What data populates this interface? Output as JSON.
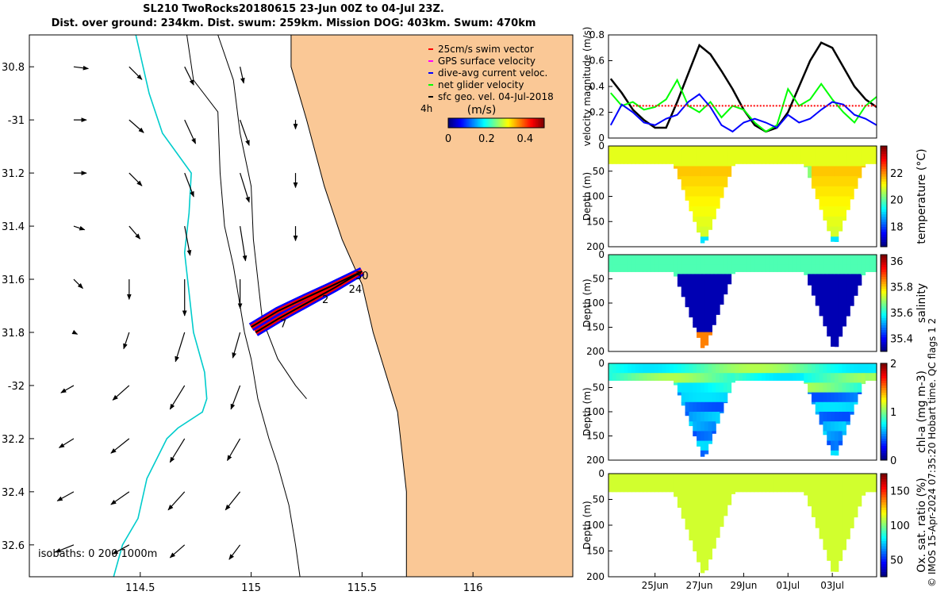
{
  "header": {
    "title_line1": "SL210 TwoRocks20180615 23-Jun 00Z to 04-Jul 23Z.",
    "title_line2": "Dist. over ground: 234km. Dist. swum: 259km. Mission DOG: 403km. Swum: 470km"
  },
  "credit": "© IMOS 15-Apr-2024 07:35:20 Hobart time. QC flags 1  2",
  "colors": {
    "land": "#fac896",
    "isobath_200": "#00cccc",
    "swim_vector": "#ff0000",
    "gps_velocity": "#ff00ff",
    "dive_avg_current": "#0000ff",
    "net_glider_velocity": "#00ff00",
    "sfc_geo_velocity": "#000000"
  },
  "chart_data": [
    {
      "type": "map",
      "id": "map",
      "xlim": [
        114.0,
        116.45
      ],
      "ylim": [
        -32.72,
        -30.68
      ],
      "x_ticks": [
        114.5,
        115,
        115.5,
        116
      ],
      "x_tick_labels": [
        "114.5",
        "115",
        "115.5",
        "116"
      ],
      "y_ticks": [
        -30.8,
        -31,
        -31.2,
        -31.4,
        -31.6,
        -31.8,
        -32,
        -32.2,
        -32.4,
        -32.6
      ],
      "y_tick_labels": [
        "30.8",
        "-31",
        "31.2",
        "31.4",
        "31.6",
        "31.8",
        "-32",
        "32.2",
        "32.4",
        "32.6"
      ],
      "legend": [
        {
          "label": "25cm/s swim vector",
          "color": "#ff0000"
        },
        {
          "label": "GPS surface velocity",
          "color": "#ff00ff"
        },
        {
          "label": "dive-avg current veloc.",
          "color": "#0000ff"
        },
        {
          "label": "net glider velocity",
          "color": "#00ff00"
        },
        {
          "label": "sfc geo. vel. 04-Jul-2018",
          "color": "#000000"
        }
      ],
      "legend_note": "4h",
      "colorbar": {
        "label": "(m/s)",
        "ticks": [
          0,
          0.2,
          0.4
        ],
        "tick_labels": [
          "0",
          "0.2",
          "0.4"
        ],
        "range": [
          0,
          0.5
        ]
      },
      "isobaths_label": "isobaths: 0   200  1000m",
      "track_labels": [
        "30",
        "24",
        "7",
        "2"
      ],
      "coastline": [
        [
          115.18,
          -30.68
        ],
        [
          115.18,
          -30.8
        ],
        [
          115.25,
          -31.0
        ],
        [
          115.33,
          -31.25
        ],
        [
          115.41,
          -31.45
        ],
        [
          115.5,
          -31.62
        ],
        [
          115.55,
          -31.8
        ],
        [
          115.66,
          -32.1
        ],
        [
          115.7,
          -32.4
        ],
        [
          115.7,
          -32.72
        ]
      ],
      "isobath_0": [
        [
          114.71,
          -30.68
        ],
        [
          114.74,
          -30.85
        ],
        [
          114.85,
          -30.97
        ],
        [
          114.86,
          -31.2
        ],
        [
          114.88,
          -31.4
        ],
        [
          114.92,
          -31.55
        ],
        [
          114.95,
          -31.7
        ],
        [
          114.97,
          -31.8
        ],
        [
          115.0,
          -31.9
        ],
        [
          115.03,
          -32.05
        ],
        [
          115.08,
          -32.2
        ],
        [
          115.12,
          -32.3
        ],
        [
          115.17,
          -32.45
        ],
        [
          115.2,
          -32.6
        ],
        [
          115.22,
          -32.72
        ]
      ],
      "isobath_200": [
        [
          114.48,
          -30.68
        ],
        [
          114.54,
          -30.9
        ],
        [
          114.6,
          -31.05
        ],
        [
          114.73,
          -31.2
        ],
        [
          114.72,
          -31.35
        ],
        [
          114.7,
          -31.5
        ],
        [
          114.72,
          -31.65
        ],
        [
          114.74,
          -31.8
        ],
        [
          114.79,
          -31.95
        ],
        [
          114.8,
          -32.05
        ],
        [
          114.78,
          -32.1
        ],
        [
          114.67,
          -32.16
        ],
        [
          114.62,
          -32.2
        ],
        [
          114.53,
          -32.35
        ],
        [
          114.49,
          -32.5
        ],
        [
          114.42,
          -32.6
        ],
        [
          114.38,
          -32.72
        ]
      ],
      "isobath_1000": [
        [
          114.85,
          -30.68
        ],
        [
          114.92,
          -30.85
        ],
        [
          114.95,
          -31.05
        ],
        [
          115.0,
          -31.25
        ],
        [
          115.01,
          -31.45
        ],
        [
          115.03,
          -31.6
        ],
        [
          115.05,
          -31.75
        ],
        [
          115.12,
          -31.9
        ],
        [
          115.2,
          -32.0
        ],
        [
          115.25,
          -32.05
        ]
      ],
      "track_path": [
        [
          115.0,
          -31.78
        ],
        [
          115.12,
          -31.72
        ],
        [
          115.22,
          -31.68
        ],
        [
          115.35,
          -31.63
        ],
        [
          115.5,
          -31.57
        ],
        [
          115.38,
          -31.63
        ],
        [
          115.25,
          -31.69
        ],
        [
          115.12,
          -31.75
        ],
        [
          115.02,
          -31.8
        ]
      ],
      "vectors": [
        {
          "lon": 114.2,
          "lat": -30.8,
          "u": 0.08,
          "v": -0.01
        },
        {
          "lon": 114.45,
          "lat": -30.8,
          "u": 0.07,
          "v": -0.07
        },
        {
          "lon": 114.7,
          "lat": -30.8,
          "u": 0.05,
          "v": -0.1
        },
        {
          "lon": 114.95,
          "lat": -30.8,
          "u": 0.02,
          "v": -0.09
        },
        {
          "lon": 114.2,
          "lat": -31.0,
          "u": 0.07,
          "v": 0.0
        },
        {
          "lon": 114.45,
          "lat": -31.0,
          "u": 0.08,
          "v": -0.07
        },
        {
          "lon": 114.7,
          "lat": -31.0,
          "u": 0.06,
          "v": -0.13
        },
        {
          "lon": 114.95,
          "lat": -31.0,
          "u": 0.05,
          "v": -0.14
        },
        {
          "lon": 115.2,
          "lat": -31.0,
          "u": 0.0,
          "v": -0.05
        },
        {
          "lon": 114.2,
          "lat": -31.2,
          "u": 0.07,
          "v": 0.0
        },
        {
          "lon": 114.45,
          "lat": -31.2,
          "u": 0.07,
          "v": -0.07
        },
        {
          "lon": 114.7,
          "lat": -31.2,
          "u": 0.05,
          "v": -0.13
        },
        {
          "lon": 114.95,
          "lat": -31.2,
          "u": 0.05,
          "v": -0.16
        },
        {
          "lon": 115.2,
          "lat": -31.2,
          "u": 0.0,
          "v": -0.08
        },
        {
          "lon": 114.2,
          "lat": -31.4,
          "u": 0.06,
          "v": -0.02
        },
        {
          "lon": 114.45,
          "lat": -31.4,
          "u": 0.06,
          "v": -0.07
        },
        {
          "lon": 114.7,
          "lat": -31.4,
          "u": 0.03,
          "v": -0.16
        },
        {
          "lon": 114.95,
          "lat": -31.4,
          "u": 0.03,
          "v": -0.19
        },
        {
          "lon": 115.2,
          "lat": -31.4,
          "u": 0.0,
          "v": -0.08
        },
        {
          "lon": 114.2,
          "lat": -31.6,
          "u": 0.05,
          "v": -0.05
        },
        {
          "lon": 114.45,
          "lat": -31.6,
          "u": 0.0,
          "v": -0.11
        },
        {
          "lon": 114.7,
          "lat": -31.6,
          "u": 0.0,
          "v": -0.2
        },
        {
          "lon": 114.95,
          "lat": -31.6,
          "u": 0.0,
          "v": -0.16
        },
        {
          "lon": 114.2,
          "lat": -31.8,
          "u": 0.02,
          "v": -0.01
        },
        {
          "lon": 114.45,
          "lat": -31.8,
          "u": -0.03,
          "v": -0.09
        },
        {
          "lon": 114.7,
          "lat": -31.8,
          "u": -0.05,
          "v": -0.16
        },
        {
          "lon": 114.95,
          "lat": -31.8,
          "u": -0.04,
          "v": -0.14
        },
        {
          "lon": 114.2,
          "lat": -32.0,
          "u": -0.07,
          "v": -0.04
        },
        {
          "lon": 114.45,
          "lat": -32.0,
          "u": -0.09,
          "v": -0.08
        },
        {
          "lon": 114.7,
          "lat": -32.0,
          "u": -0.08,
          "v": -0.13
        },
        {
          "lon": 114.95,
          "lat": -32.0,
          "u": -0.05,
          "v": -0.13
        },
        {
          "lon": 114.2,
          "lat": -32.2,
          "u": -0.08,
          "v": -0.05
        },
        {
          "lon": 114.45,
          "lat": -32.2,
          "u": -0.1,
          "v": -0.08
        },
        {
          "lon": 114.7,
          "lat": -32.2,
          "u": -0.08,
          "v": -0.13
        },
        {
          "lon": 114.95,
          "lat": -32.2,
          "u": -0.07,
          "v": -0.12
        },
        {
          "lon": 114.2,
          "lat": -32.4,
          "u": -0.09,
          "v": -0.05
        },
        {
          "lon": 114.45,
          "lat": -32.4,
          "u": -0.1,
          "v": -0.07
        },
        {
          "lon": 114.7,
          "lat": -32.4,
          "u": -0.09,
          "v": -0.1
        },
        {
          "lon": 114.95,
          "lat": -32.4,
          "u": -0.08,
          "v": -0.1
        },
        {
          "lon": 114.2,
          "lat": -32.6,
          "u": -0.1,
          "v": -0.04
        },
        {
          "lon": 114.45,
          "lat": -32.6,
          "u": -0.09,
          "v": -0.05
        },
        {
          "lon": 114.7,
          "lat": -32.6,
          "u": -0.08,
          "v": -0.07
        },
        {
          "lon": 114.95,
          "lat": -32.6,
          "u": -0.06,
          "v": -0.08
        }
      ]
    },
    {
      "type": "line",
      "id": "velocity",
      "xlim": [
        22.9,
        35.0
      ],
      "ylim": [
        0,
        0.8
      ],
      "y_ticks": [
        0,
        0.2,
        0.4,
        0.6,
        0.8
      ],
      "ylabel": "velocity magnitude (m/s)",
      "series": [
        {
          "color": "#000000",
          "x": [
            23,
            23.5,
            24,
            24.5,
            25,
            25.5,
            26,
            26.5,
            27,
            27.5,
            28,
            28.5,
            29,
            29.5,
            30,
            30.5,
            31,
            31.5,
            32,
            32.5,
            33,
            33.5,
            34,
            34.5,
            35
          ],
          "values": [
            0.46,
            0.35,
            0.22,
            0.14,
            0.08,
            0.08,
            0.28,
            0.5,
            0.72,
            0.65,
            0.52,
            0.38,
            0.22,
            0.1,
            0.05,
            0.08,
            0.2,
            0.4,
            0.6,
            0.74,
            0.7,
            0.55,
            0.4,
            0.3,
            0.24
          ]
        },
        {
          "color": "#00ff00",
          "x": [
            23,
            23.5,
            24,
            24.5,
            25,
            25.5,
            26,
            26.5,
            27,
            27.5,
            28,
            28.5,
            29,
            29.5,
            30,
            30.5,
            31,
            31.5,
            32,
            32.5,
            33,
            33.5,
            34,
            34.5,
            35
          ],
          "values": [
            0.35,
            0.25,
            0.28,
            0.22,
            0.24,
            0.3,
            0.45,
            0.25,
            0.2,
            0.28,
            0.16,
            0.25,
            0.22,
            0.12,
            0.05,
            0.1,
            0.38,
            0.25,
            0.3,
            0.42,
            0.3,
            0.2,
            0.12,
            0.25,
            0.32
          ]
        },
        {
          "color": "#0000ff",
          "x": [
            23,
            23.5,
            24,
            24.5,
            25,
            25.5,
            26,
            26.5,
            27,
            27.5,
            28,
            28.5,
            29,
            29.5,
            30,
            30.5,
            31,
            31.5,
            32,
            32.5,
            33,
            33.5,
            34,
            34.5,
            35
          ],
          "values": [
            0.1,
            0.26,
            0.2,
            0.12,
            0.1,
            0.15,
            0.18,
            0.28,
            0.34,
            0.24,
            0.1,
            0.05,
            0.12,
            0.15,
            0.12,
            0.08,
            0.18,
            0.12,
            0.15,
            0.22,
            0.28,
            0.26,
            0.18,
            0.15,
            0.1
          ]
        },
        {
          "color": "#ff0000",
          "x": [
            24,
            35
          ],
          "values": [
            0.25,
            0.25
          ]
        }
      ]
    },
    {
      "type": "heatmap",
      "id": "temperature",
      "xlim": [
        22.9,
        35.0
      ],
      "ylim": [
        200,
        0
      ],
      "y_ticks": [
        0,
        50,
        100,
        150,
        200
      ],
      "ylabel": "Depth (m)",
      "colorbar": {
        "label": "temperature (°C)",
        "range": [
          16.5,
          24
        ],
        "ticks": [
          18,
          20,
          22
        ],
        "tick_labels": [
          "18",
          "20",
          "22"
        ]
      }
    },
    {
      "type": "heatmap",
      "id": "salinity",
      "xlim": [
        22.9,
        35.0
      ],
      "ylim": [
        200,
        0
      ],
      "y_ticks": [
        0,
        50,
        100,
        150,
        200
      ],
      "ylabel": "Depth (m)",
      "colorbar": {
        "label": "salinity",
        "range": [
          35.3,
          36.05
        ],
        "ticks": [
          35.4,
          35.6,
          35.8,
          36
        ],
        "tick_labels": [
          "35.4",
          "35.6",
          "35.8",
          "36"
        ]
      }
    },
    {
      "type": "heatmap",
      "id": "chla",
      "xlim": [
        22.9,
        35.0
      ],
      "ylim": [
        200,
        0
      ],
      "y_ticks": [
        0,
        50,
        100,
        150,
        200
      ],
      "ylabel": "Depth (m)",
      "colorbar": {
        "label": "chl-a (mg m-3)",
        "range": [
          0,
          2
        ],
        "ticks": [
          0,
          1,
          2
        ],
        "tick_labels": [
          "0",
          "1",
          "2"
        ]
      }
    },
    {
      "type": "heatmap",
      "id": "oxygen",
      "xlim": [
        22.9,
        35.0
      ],
      "ylim": [
        200,
        0
      ],
      "y_ticks": [
        0,
        50,
        100,
        150,
        200
      ],
      "ylabel": "Depth (m)",
      "colorbar": {
        "label": "Ox. sat. ratio (%)",
        "range": [
          25,
          175
        ],
        "ticks": [
          50,
          100,
          150
        ],
        "tick_labels": [
          "50",
          "100",
          "150"
        ]
      }
    },
    {
      "type": "axis",
      "id": "time_axis",
      "x_ticks": [
        25,
        27,
        29,
        31,
        33
      ],
      "x_tick_labels": [
        "25Jun",
        "27Jun",
        "29Jun",
        "01Jul",
        "03Jul"
      ]
    }
  ]
}
